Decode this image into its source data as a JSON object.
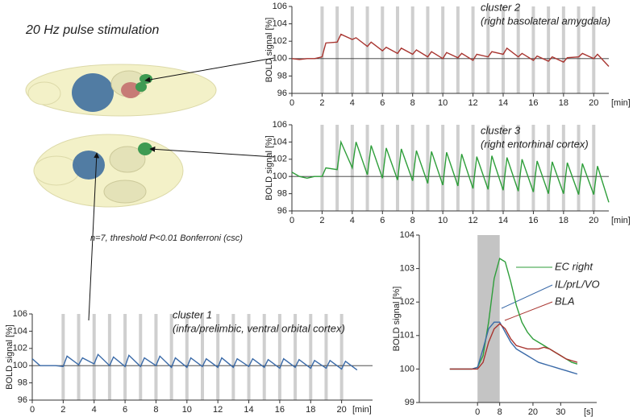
{
  "heading": "20 Hz pulse stimulation",
  "note": "n=7, threshold P<0.01 Bonferroni (csc)",
  "chart_data": [
    {
      "type": "line",
      "title": "cluster 2",
      "subtitle": "(right basolateral amygdala)",
      "ylabel": "BOLD signal [%]",
      "xlabel": "[min]",
      "xlim": [
        0,
        21
      ],
      "ylim": [
        96,
        106
      ],
      "xticks": [
        0,
        2,
        4,
        6,
        8,
        10,
        12,
        14,
        16,
        18,
        20
      ],
      "yticks": [
        96,
        98,
        100,
        102,
        104,
        106
      ],
      "reference_line": 100,
      "stimulus_x": [
        2,
        3,
        4,
        5,
        6,
        7,
        8,
        9,
        10,
        11,
        12,
        13,
        14,
        15,
        16,
        17,
        18,
        19,
        20
      ],
      "x": [
        0,
        0.5,
        1,
        1.5,
        2,
        2.25,
        3,
        3.25,
        4,
        4.25,
        5,
        5.25,
        6,
        6.25,
        7,
        7.25,
        8,
        8.25,
        9,
        9.25,
        10,
        10.25,
        11,
        11.25,
        12,
        12.25,
        13,
        13.25,
        14,
        14.25,
        15,
        15.25,
        16,
        16.25,
        17,
        17.25,
        18,
        18.25,
        19,
        19.25,
        20,
        20.25,
        21
      ],
      "series": [
        {
          "color": "#a8342f",
          "values": [
            100,
            99.9,
            100,
            100,
            100.2,
            101.8,
            101.9,
            102.8,
            102.2,
            102.4,
            101.4,
            101.9,
            100.9,
            101.3,
            100.6,
            101.2,
            100.5,
            101.0,
            100.2,
            100.8,
            100.0,
            100.7,
            100.1,
            100.6,
            99.8,
            100.5,
            100.2,
            100.8,
            100.5,
            101.2,
            100.2,
            100.6,
            99.8,
            100.3,
            99.7,
            100.2,
            99.6,
            100.1,
            100.2,
            100.6,
            100.0,
            100.5,
            99.1
          ]
        }
      ]
    },
    {
      "type": "line",
      "title": "cluster 3",
      "subtitle": "(right entorhinal cortex)",
      "ylabel": "BOLD signal [%]",
      "xlabel": "[min]",
      "xlim": [
        0,
        21
      ],
      "ylim": [
        96,
        106
      ],
      "xticks": [
        0,
        2,
        4,
        6,
        8,
        10,
        12,
        14,
        16,
        18,
        20
      ],
      "yticks": [
        96,
        98,
        100,
        102,
        104,
        106
      ],
      "reference_line": 100,
      "stimulus_x": [
        2,
        3,
        4,
        5,
        6,
        7,
        8,
        9,
        10,
        11,
        12,
        13,
        14,
        15,
        16,
        17,
        18,
        19,
        20
      ],
      "x": [
        0,
        0.5,
        1,
        1.5,
        2,
        2.25,
        3,
        3.25,
        4,
        4.25,
        5,
        5.25,
        6,
        6.25,
        7,
        7.25,
        8,
        8.25,
        9,
        9.25,
        10,
        10.25,
        11,
        11.25,
        12,
        12.25,
        13,
        13.25,
        14,
        14.25,
        15,
        15.25,
        16,
        16.25,
        17,
        17.25,
        18,
        18.25,
        19,
        19.25,
        20,
        20.25,
        21
      ],
      "series": [
        {
          "color": "#2e9e3a",
          "values": [
            100.5,
            100.0,
            99.8,
            100.0,
            100.0,
            101.0,
            100.8,
            104.0,
            101.0,
            104.0,
            100.2,
            103.6,
            99.8,
            103.3,
            99.6,
            103.2,
            99.5,
            103.0,
            99.2,
            102.9,
            99.0,
            102.8,
            98.9,
            102.6,
            98.6,
            102.3,
            98.5,
            102.4,
            98.4,
            102.2,
            98.3,
            102.0,
            98.2,
            101.8,
            98.0,
            101.7,
            98.0,
            101.6,
            97.9,
            101.5,
            97.9,
            101.2,
            97.0
          ]
        }
      ]
    },
    {
      "type": "line",
      "title": "cluster 1",
      "subtitle": "(infra/prelimbic, ventral orbital cortex)",
      "ylabel": "BOLD signal [%]",
      "xlabel": "[min]",
      "xlim": [
        0,
        22
      ],
      "ylim": [
        96,
        106
      ],
      "xticks": [
        0,
        2,
        4,
        6,
        8,
        10,
        12,
        14,
        16,
        18,
        20
      ],
      "yticks": [
        96,
        98,
        100,
        102,
        104,
        106
      ],
      "reference_line": 100,
      "stimulus_x": [
        2,
        3,
        4,
        5,
        6,
        7,
        8,
        9,
        10,
        11,
        12,
        13,
        14,
        15,
        16,
        17,
        18,
        19,
        20
      ],
      "x": [
        0,
        0.5,
        1,
        1.5,
        2,
        2.25,
        3,
        3.25,
        4,
        4.25,
        5,
        5.25,
        6,
        6.25,
        7,
        7.25,
        8,
        8.25,
        9,
        9.25,
        10,
        10.25,
        11,
        11.25,
        12,
        12.25,
        13,
        13.25,
        14,
        14.25,
        15,
        15.25,
        16,
        16.25,
        17,
        17.25,
        18,
        18.25,
        19,
        19.25,
        20,
        20.25,
        21
      ],
      "series": [
        {
          "color": "#3a6aa8",
          "values": [
            100.8,
            100,
            100,
            100,
            99.9,
            101.1,
            100.1,
            100.9,
            100.2,
            101.3,
            100.0,
            101.0,
            99.9,
            101.2,
            99.9,
            100.9,
            100.0,
            101.1,
            99.8,
            100.9,
            99.8,
            100.9,
            99.9,
            100.8,
            99.8,
            100.9,
            99.8,
            100.8,
            99.9,
            100.8,
            99.8,
            100.7,
            99.7,
            100.8,
            99.8,
            100.7,
            99.7,
            100.6,
            99.7,
            100.6,
            99.6,
            100.5,
            99.5
          ]
        }
      ]
    },
    {
      "type": "line",
      "ylabel": "BOLD signal [%]",
      "xlabel": "[s]",
      "xlim": [
        -21,
        43
      ],
      "ylim": [
        99,
        104
      ],
      "xticks": [
        0,
        8,
        20,
        30
      ],
      "yticks": [
        99,
        100,
        101,
        102,
        103,
        104
      ],
      "stimulus_span": [
        0,
        8
      ],
      "x": [
        -10,
        -8,
        -6,
        -4,
        -2,
        0,
        2,
        4,
        6,
        8,
        10,
        12,
        14,
        16,
        18,
        20,
        22,
        24,
        26,
        28,
        30,
        32,
        34,
        36
      ],
      "series": [
        {
          "name": "EC right",
          "color": "#2e9e3a",
          "values": [
            100,
            100,
            100,
            100,
            100,
            100.05,
            100.4,
            101.4,
            102.7,
            103.3,
            103.2,
            102.6,
            101.9,
            101.4,
            101.1,
            100.9,
            100.8,
            100.7,
            100.6,
            100.5,
            100.4,
            100.3,
            100.2,
            100.15
          ]
        },
        {
          "name": "IL/prL/VO",
          "color": "#3a6aa8",
          "values": [
            100,
            100,
            100,
            100,
            100,
            100.05,
            100.6,
            101.2,
            101.4,
            101.4,
            101.1,
            100.8,
            100.6,
            100.5,
            100.4,
            100.3,
            100.2,
            100.15,
            100.1,
            100.05,
            100,
            99.95,
            99.9,
            99.85
          ]
        },
        {
          "name": "BLA",
          "color": "#a8342f",
          "values": [
            100,
            100,
            100,
            100,
            100,
            100,
            100.2,
            100.8,
            101.2,
            101.35,
            101.2,
            100.9,
            100.7,
            100.65,
            100.6,
            100.6,
            100.6,
            100.65,
            100.6,
            100.5,
            100.4,
            100.3,
            100.25,
            100.2
          ]
        }
      ]
    }
  ]
}
